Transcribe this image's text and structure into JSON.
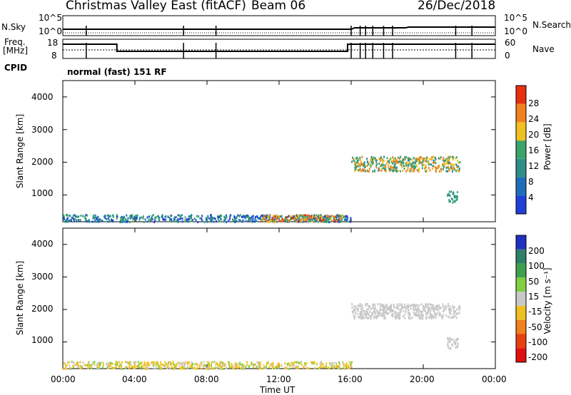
{
  "header": {
    "station": "Christmas Valley East (fitACF)",
    "beam": "Beam 06",
    "date": "26/Dec/2018"
  },
  "panels": {
    "nsky": {
      "label": "N.Sky",
      "top_tick": "10^5",
      "bottom_tick": "10^0"
    },
    "nsearch": {
      "label": "N.Search",
      "top_tick": "10^5",
      "bottom_tick": "10^0"
    },
    "freq": {
      "label_line1": "Freq.",
      "label_line2": "[MHz]",
      "top_tick": "18",
      "bottom_tick": "8"
    },
    "nave": {
      "label": "Nave",
      "top_tick": "60",
      "bottom_tick": "0"
    },
    "cpid": {
      "label": "CPID",
      "value": "normal (fast) 151 RF"
    }
  },
  "chart_data": [
    {
      "type": "heatmap",
      "name": "power",
      "ylabel": "Slant Range [km]",
      "ylim": [
        180,
        4500
      ],
      "yticks": [
        "1000",
        "2000",
        "3000",
        "4000"
      ],
      "colorbar": {
        "label": "Power [dB]",
        "ticks": [
          "4",
          "8",
          "12",
          "16",
          "20",
          "24",
          "28"
        ],
        "colors": [
          "#1f3fd6",
          "#1f6fb8",
          "#2e8f8a",
          "#3aa36a",
          "#f0c020",
          "#f08020",
          "#e83010"
        ]
      },
      "regions": [
        {
          "t0": 0.0,
          "t1": 16.0,
          "r0": 200,
          "r1": 420,
          "level": "low-mid"
        },
        {
          "t0": 11.0,
          "t1": 15.5,
          "r0": 200,
          "r1": 420,
          "level": "high"
        },
        {
          "t0": 16.0,
          "t1": 22.0,
          "r0": 1750,
          "r1": 2200,
          "level": "mid-high"
        },
        {
          "t0": 21.3,
          "t1": 21.9,
          "r0": 800,
          "r1": 1150,
          "level": "mid"
        }
      ]
    },
    {
      "type": "heatmap",
      "name": "velocity",
      "xlabel": "Time UT",
      "ylabel": "Slant Range [km]",
      "ylim": [
        180,
        4500
      ],
      "yticks": [
        "1000",
        "2000",
        "3000",
        "4000"
      ],
      "xticks": [
        "00:00",
        "04:00",
        "08:00",
        "12:00",
        "16:00",
        "20:00",
        "00:00"
      ],
      "colorbar": {
        "label": "Velocity [m s⁻¹]",
        "ticks": [
          "200",
          "100",
          "50",
          "15",
          "-15",
          "-50",
          "-100",
          "-200"
        ],
        "colors": [
          "#2030c0",
          "#2f7f6a",
          "#3fa050",
          "#80d040",
          "#c8c8c8",
          "#f0c020",
          "#f08020",
          "#e84010",
          "#e01010"
        ]
      },
      "regions": [
        {
          "t0": 0.0,
          "t1": 16.0,
          "r0": 200,
          "r1": 420,
          "level": "toward-slow"
        },
        {
          "t0": 16.0,
          "t1": 22.0,
          "r0": 1750,
          "r1": 2200,
          "level": "ground-scatter"
        },
        {
          "t0": 21.3,
          "t1": 21.9,
          "r0": 800,
          "r1": 1150,
          "level": "ground-scatter"
        }
      ]
    }
  ]
}
